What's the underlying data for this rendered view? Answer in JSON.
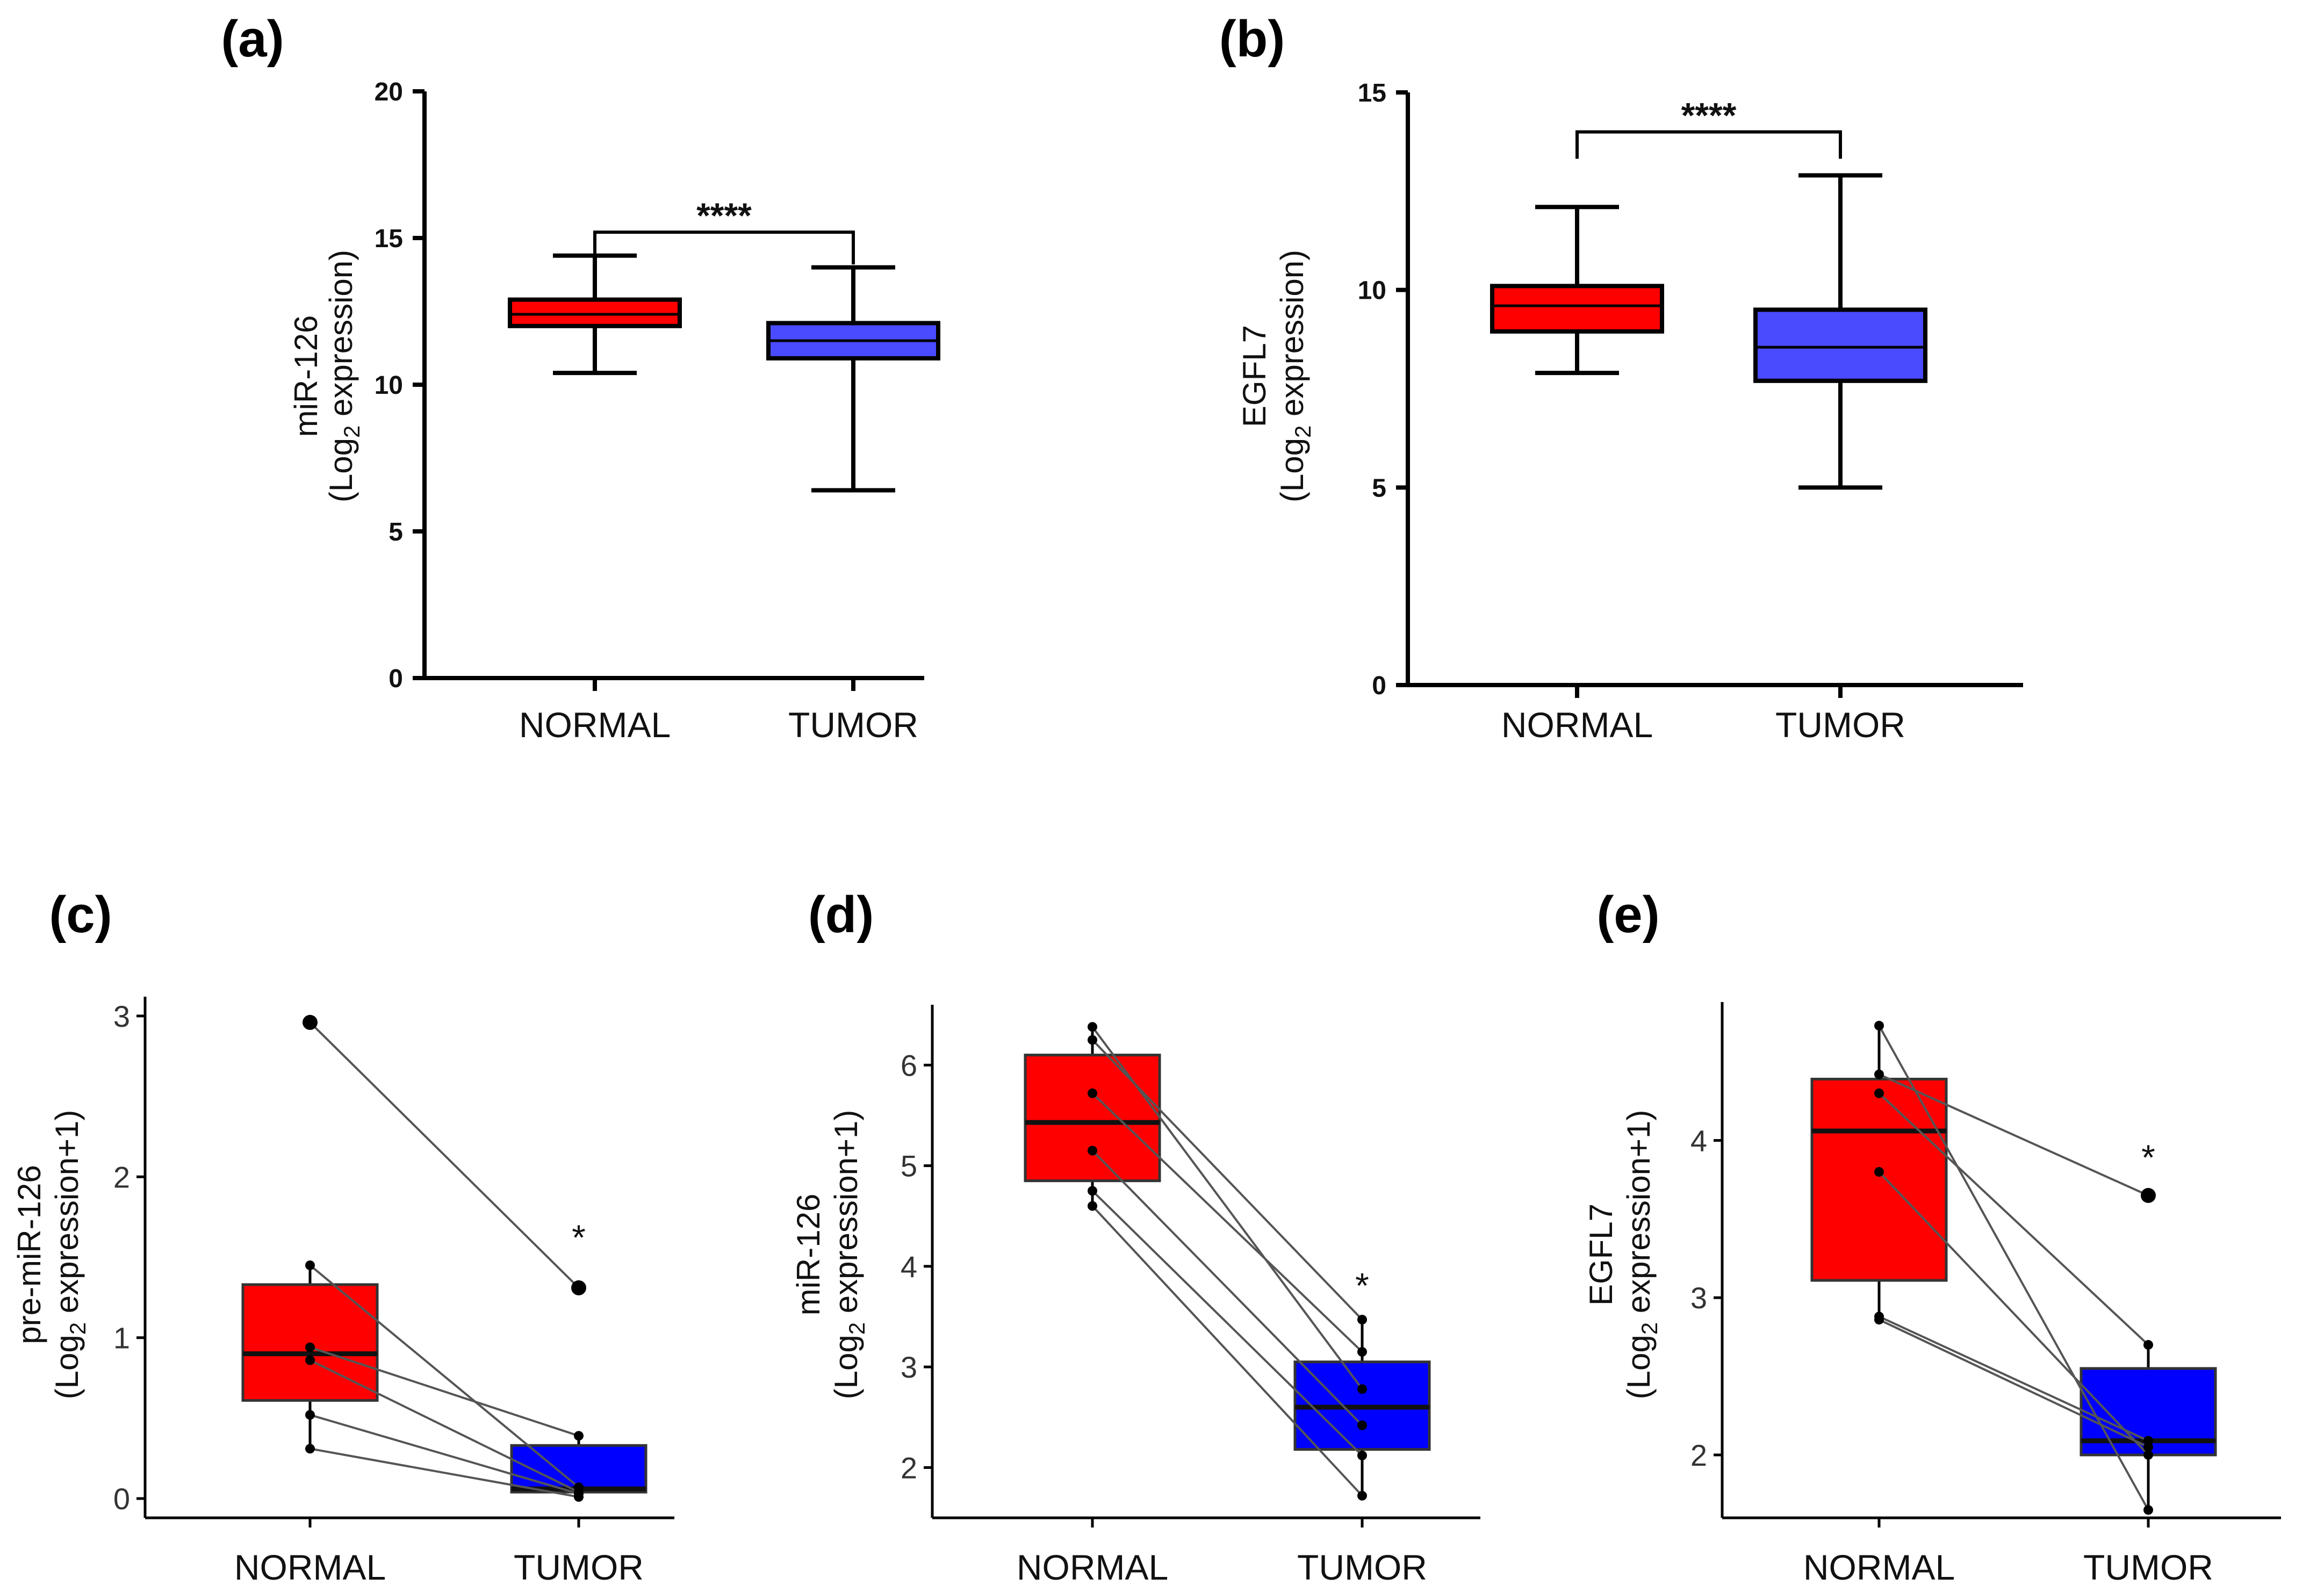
{
  "chart_data": [
    {
      "id": "a",
      "panel_label": "(a)",
      "type": "box",
      "categories": [
        "NORMAL",
        "TUMOR"
      ],
      "ylabel": "miR-126",
      "ylabel2_prefix": "(Log",
      "ylabel2_sub": "2",
      "ylabel2_suffix": " expression)",
      "ylim": [
        0,
        20
      ],
      "yticks": [
        0,
        5,
        10,
        15,
        20
      ],
      "boxes": [
        {
          "name": "NORMAL",
          "whisker_low": 10.4,
          "q1": 12.0,
          "median": 12.4,
          "q3": 12.9,
          "whisker_high": 14.4,
          "color": "#ff0000"
        },
        {
          "name": "TUMOR",
          "whisker_low": 6.4,
          "q1": 10.9,
          "median": 11.5,
          "q3": 12.1,
          "whisker_high": 14.0,
          "color": "#4a4aff"
        }
      ],
      "significance": "****",
      "bracket_y": 15.2
    },
    {
      "id": "b",
      "panel_label": "(b)",
      "type": "box",
      "categories": [
        "NORMAL",
        "TUMOR"
      ],
      "ylabel": "EGFL7",
      "ylabel2_prefix": "(Log",
      "ylabel2_sub": "2",
      "ylabel2_suffix": " expression)",
      "ylim": [
        0,
        15
      ],
      "yticks": [
        0,
        5,
        10,
        15
      ],
      "boxes": [
        {
          "name": "NORMAL",
          "whisker_low": 7.9,
          "q1": 8.95,
          "median": 9.6,
          "q3": 10.1,
          "whisker_high": 12.1,
          "color": "#ff0000"
        },
        {
          "name": "TUMOR",
          "whisker_low": 5.0,
          "q1": 7.7,
          "median": 8.55,
          "q3": 9.5,
          "whisker_high": 12.9,
          "color": "#4a4aff"
        }
      ],
      "significance": "****",
      "bracket_y": 14.0
    },
    {
      "id": "c",
      "panel_label": "(c)",
      "type": "box",
      "categories": [
        "NORMAL",
        "TUMOR"
      ],
      "ylabel": "pre-miR-126",
      "ylabel2_prefix": "(Log",
      "ylabel2_sub": "2",
      "ylabel2_suffix": " expression+1)",
      "ylim": [
        -0.12,
        3.12
      ],
      "yticks": [
        0,
        1,
        2,
        3
      ],
      "boxes": [
        {
          "name": "NORMAL",
          "whisker_low": 0.31,
          "q1": 0.61,
          "median": 0.9,
          "q3": 1.33,
          "whisker_high": 1.45,
          "color": "#ff0000",
          "outliers": [
            2.96
          ]
        },
        {
          "name": "TUMOR",
          "whisker_low": 0.01,
          "q1": 0.04,
          "median": 0.06,
          "q3": 0.33,
          "whisker_high": 0.39,
          "color": "#0000ff",
          "outliers": [
            1.31
          ]
        }
      ],
      "pairs": [
        [
          2.96,
          1.31
        ],
        [
          1.45,
          0.07
        ],
        [
          0.94,
          0.39
        ],
        [
          0.86,
          0.04
        ],
        [
          0.52,
          0.03
        ],
        [
          0.31,
          0.01
        ]
      ],
      "significance": "*",
      "star_y": 1.68
    },
    {
      "id": "d",
      "panel_label": "(d)",
      "type": "box",
      "categories": [
        "NORMAL",
        "TUMOR"
      ],
      "ylabel": "miR-126",
      "ylabel2_prefix": "(Log",
      "ylabel2_sub": "2",
      "ylabel2_suffix": " expression+1)",
      "ylim": [
        1.5,
        6.6
      ],
      "yticks": [
        2,
        3,
        4,
        5,
        6
      ],
      "boxes": [
        {
          "name": "NORMAL",
          "whisker_low": 4.6,
          "q1": 4.85,
          "median": 5.43,
          "q3": 6.1,
          "whisker_high": 6.38,
          "color": "#ff0000"
        },
        {
          "name": "TUMOR",
          "whisker_low": 1.72,
          "q1": 2.18,
          "median": 2.6,
          "q3": 3.05,
          "whisker_high": 3.47,
          "color": "#0000ff"
        }
      ],
      "pairs": [
        [
          6.38,
          2.78
        ],
        [
          6.25,
          3.47
        ],
        [
          5.72,
          3.15
        ],
        [
          5.15,
          2.42
        ],
        [
          4.75,
          2.12
        ],
        [
          4.6,
          1.72
        ]
      ],
      "significance": "*",
      "star_y": 3.9
    },
    {
      "id": "e",
      "panel_label": "(e)",
      "type": "box",
      "categories": [
        "NORMAL",
        "TUMOR"
      ],
      "ylabel": "EGFL7",
      "ylabel2_prefix": "(Log",
      "ylabel2_sub": "2",
      "ylabel2_suffix": " expression+1)",
      "ylim": [
        1.6,
        4.88
      ],
      "yticks": [
        2,
        3,
        4
      ],
      "boxes": [
        {
          "name": "NORMAL",
          "whisker_low": 2.86,
          "q1": 3.11,
          "median": 4.06,
          "q3": 4.39,
          "whisker_high": 4.73,
          "color": "#ff0000"
        },
        {
          "name": "TUMOR",
          "whisker_low": 1.65,
          "q1": 2.0,
          "median": 2.09,
          "q3": 2.55,
          "whisker_high": 2.7,
          "color": "#0000ff",
          "outliers": [
            3.65
          ]
        }
      ],
      "pairs": [
        [
          4.73,
          1.65
        ],
        [
          4.42,
          3.65
        ],
        [
          4.3,
          2.7
        ],
        [
          3.8,
          2.0
        ],
        [
          2.88,
          2.09
        ],
        [
          2.86,
          2.05
        ]
      ],
      "significance": "*",
      "star_y": 3.95
    }
  ]
}
